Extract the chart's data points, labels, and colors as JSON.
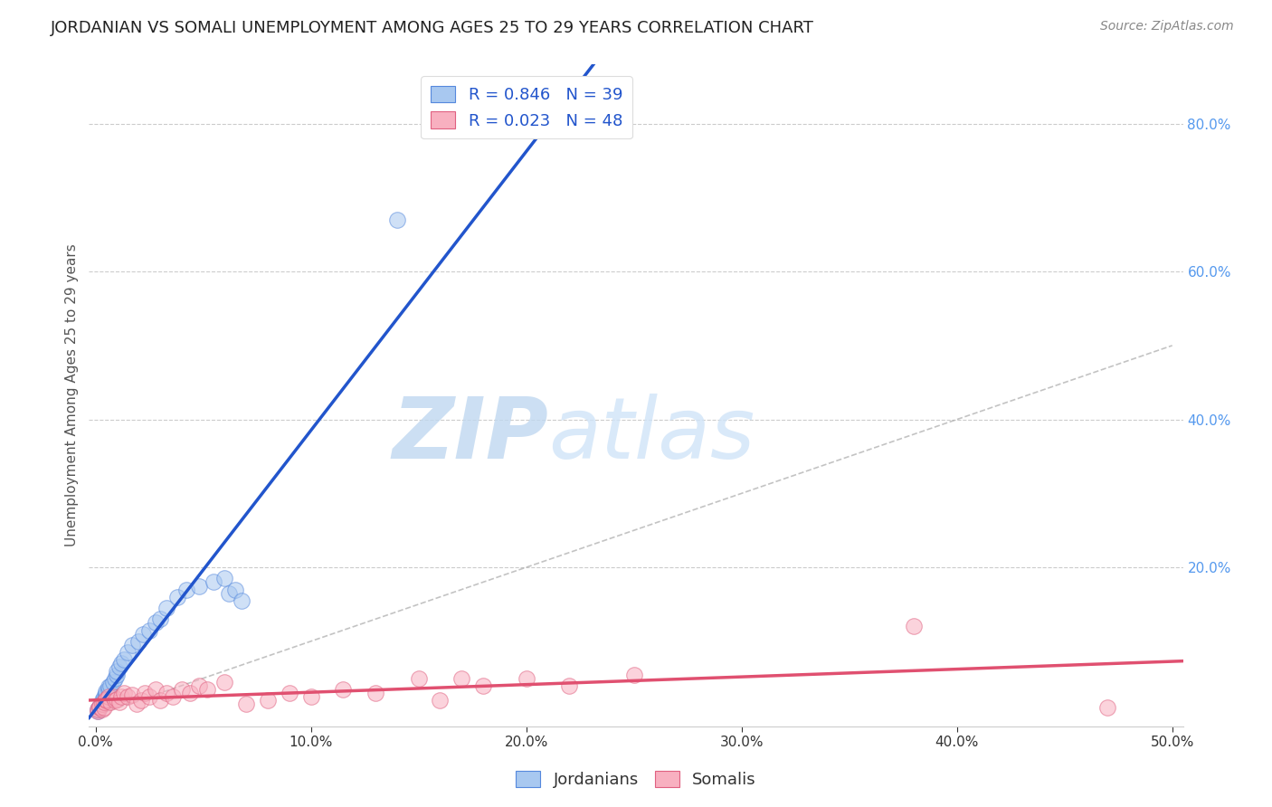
{
  "title": "JORDANIAN VS SOMALI UNEMPLOYMENT AMONG AGES 25 TO 29 YEARS CORRELATION CHART",
  "source": "Source: ZipAtlas.com",
  "ylabel": "Unemployment Among Ages 25 to 29 years",
  "xlim": [
    -0.003,
    0.505
  ],
  "ylim": [
    -0.015,
    0.88
  ],
  "xticks": [
    0.0,
    0.1,
    0.2,
    0.3,
    0.4,
    0.5
  ],
  "xticklabels": [
    "0.0%",
    "10.0%",
    "20.0%",
    "30.0%",
    "40.0%",
    "50.0%"
  ],
  "yticks_right": [
    0.2,
    0.4,
    0.6,
    0.8
  ],
  "yticklabels_right": [
    "20.0%",
    "40.0%",
    "60.0%",
    "80.0%"
  ],
  "jordanian_fill": "#a8c8f0",
  "jordanian_edge": "#5588dd",
  "somali_fill": "#f8b0c0",
  "somali_edge": "#e06080",
  "jordanian_line_color": "#2255cc",
  "somali_line_color": "#e05070",
  "R_jordan": 0.846,
  "N_jordan": 39,
  "R_somali": 0.023,
  "N_somali": 48,
  "jordan_x": [
    0.001,
    0.001,
    0.002,
    0.002,
    0.003,
    0.003,
    0.003,
    0.004,
    0.004,
    0.005,
    0.005,
    0.005,
    0.006,
    0.006,
    0.007,
    0.008,
    0.009,
    0.01,
    0.01,
    0.011,
    0.012,
    0.013,
    0.015,
    0.017,
    0.02,
    0.022,
    0.025,
    0.028,
    0.03,
    0.033,
    0.038,
    0.042,
    0.048,
    0.055,
    0.06,
    0.062,
    0.065,
    0.068,
    0.14
  ],
  "jordan_y": [
    0.005,
    0.008,
    0.01,
    0.012,
    0.015,
    0.018,
    0.02,
    0.022,
    0.025,
    0.028,
    0.03,
    0.032,
    0.035,
    0.038,
    0.04,
    0.045,
    0.05,
    0.055,
    0.06,
    0.065,
    0.07,
    0.075,
    0.085,
    0.095,
    0.1,
    0.11,
    0.115,
    0.125,
    0.13,
    0.145,
    0.16,
    0.17,
    0.175,
    0.18,
    0.185,
    0.165,
    0.17,
    0.155,
    0.67
  ],
  "somali_x": [
    0.001,
    0.001,
    0.002,
    0.002,
    0.003,
    0.003,
    0.004,
    0.004,
    0.005,
    0.005,
    0.006,
    0.007,
    0.008,
    0.009,
    0.01,
    0.011,
    0.012,
    0.013,
    0.015,
    0.017,
    0.019,
    0.021,
    0.023,
    0.025,
    0.028,
    0.03,
    0.033,
    0.036,
    0.04,
    0.044,
    0.048,
    0.052,
    0.06,
    0.07,
    0.08,
    0.09,
    0.1,
    0.115,
    0.13,
    0.15,
    0.16,
    0.17,
    0.18,
    0.2,
    0.22,
    0.25,
    0.38,
    0.47
  ],
  "somali_y": [
    0.005,
    0.008,
    0.01,
    0.012,
    0.008,
    0.015,
    0.01,
    0.018,
    0.02,
    0.022,
    0.025,
    0.018,
    0.025,
    0.02,
    0.022,
    0.018,
    0.025,
    0.03,
    0.025,
    0.028,
    0.015,
    0.02,
    0.03,
    0.025,
    0.035,
    0.02,
    0.03,
    0.025,
    0.035,
    0.03,
    0.04,
    0.035,
    0.045,
    0.015,
    0.02,
    0.03,
    0.025,
    0.035,
    0.03,
    0.05,
    0.02,
    0.05,
    0.04,
    0.05,
    0.04,
    0.055,
    0.12,
    0.01
  ],
  "watermark_zip": "ZIP",
  "watermark_atlas": "atlas",
  "marker_size": 160,
  "marker_alpha": 0.55,
  "title_fontsize": 13,
  "axis_label_fontsize": 11,
  "tick_fontsize": 11,
  "legend_fontsize": 13,
  "grid_color": "#cccccc",
  "tick_color": "#5599ee"
}
